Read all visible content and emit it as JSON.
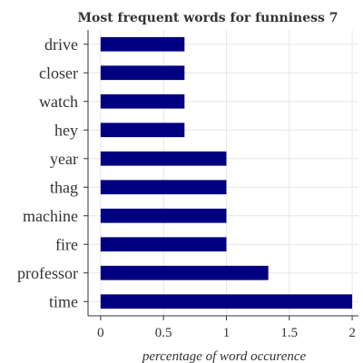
{
  "chart_data": {
    "type": "bar",
    "orientation": "horizontal",
    "title": "Most frequent words for funniness 7",
    "xlabel": "percentage of word occurence",
    "ylabel": "",
    "categories": [
      "time",
      "professor",
      "fire",
      "machine",
      "thag",
      "year",
      "hey",
      "watch",
      "closer",
      "drive"
    ],
    "values": [
      2.0,
      1.333,
      1.0,
      1.0,
      1.0,
      1.0,
      0.667,
      0.667,
      0.667,
      0.667
    ],
    "xlim": [
      -0.1,
      2.05
    ],
    "xticks": [
      0,
      0.5,
      1,
      1.5,
      2
    ],
    "xtick_labels": [
      "0",
      "0.5",
      "1",
      "1.5",
      "2"
    ],
    "grid": true,
    "bar_color": "#000080"
  }
}
